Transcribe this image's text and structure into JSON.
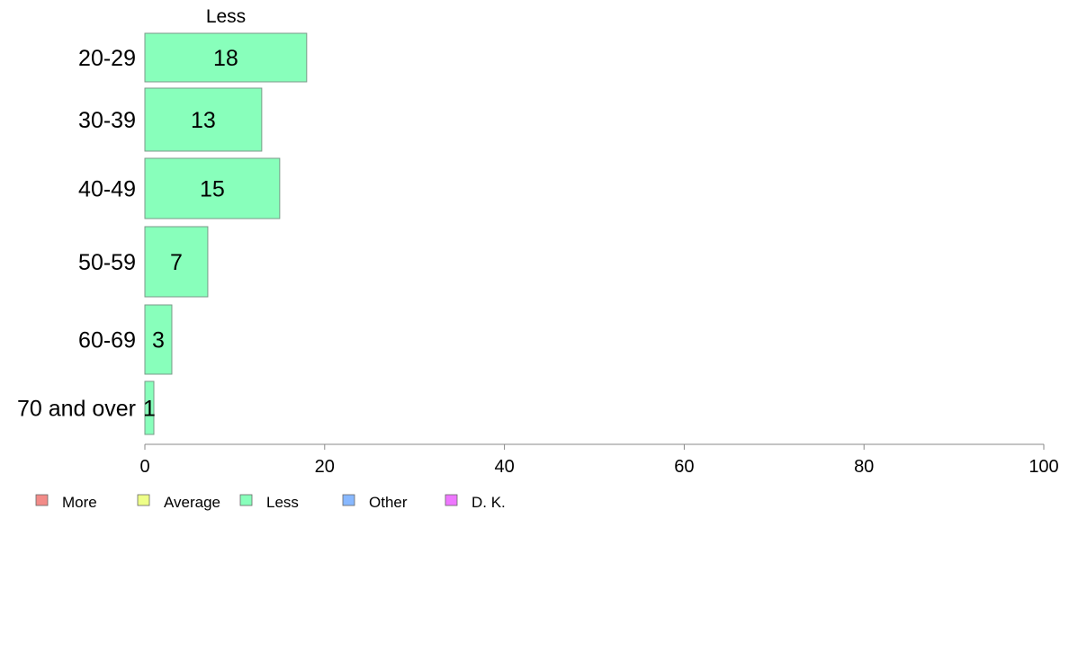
{
  "chart_data": {
    "type": "bar",
    "orientation": "horizontal",
    "series_title": "Less",
    "categories": [
      "20-29",
      "30-39",
      "40-49",
      "50-59",
      "60-69",
      "70 and over"
    ],
    "series": [
      {
        "name": "Less",
        "values": [
          18,
          13,
          15,
          7,
          3,
          1
        ]
      }
    ],
    "value_labels": [
      "18",
      "13",
      "15",
      "7",
      "3",
      "1"
    ],
    "xlim": [
      0,
      100
    ],
    "xticks": [
      0,
      20,
      40,
      60,
      80,
      100
    ],
    "grid": false,
    "legend_position": "bottom-left",
    "legend": [
      {
        "label": "More",
        "color": "#f28b88"
      },
      {
        "label": "Average",
        "color": "#eeff88"
      },
      {
        "label": "Less",
        "color": "#88ffbb"
      },
      {
        "label": "Other",
        "color": "#88b8ff"
      },
      {
        "label": "D. K.",
        "color": "#ee77ff"
      }
    ],
    "bar_color": "#88ffbb",
    "bar_stroke": "#7a9a88",
    "axis_color": "#888888"
  }
}
